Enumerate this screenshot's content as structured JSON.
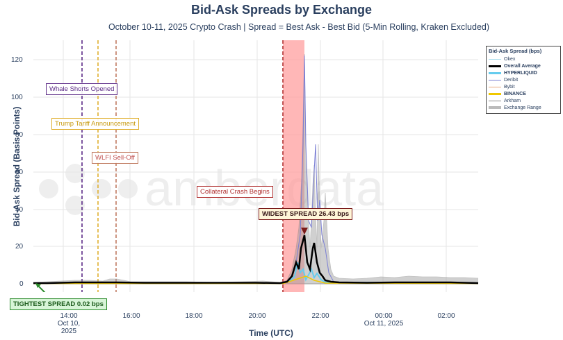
{
  "header": {
    "title": "Bid-Ask Spreads by Exchange",
    "subtitle": "October 10-11, 2025 Crypto Crash | Spread = Best Ask - Best Bid (5-Min Rolling, Kraken Excluded)"
  },
  "watermark": "amberdata",
  "legend": {
    "title": "Bid-Ask Spread (bps)",
    "items": [
      {
        "label": "Okex",
        "color": "#aaddee",
        "width": 1,
        "bold": false
      },
      {
        "label": "Overall Average",
        "color": "#000000",
        "width": 3,
        "bold": true
      },
      {
        "label": "HYPERLIQUID",
        "color": "#66ccee",
        "width": 3,
        "bold": true
      },
      {
        "label": "Deribit",
        "color": "#7b7fd4",
        "width": 1,
        "bold": false
      },
      {
        "label": "Bybit",
        "color": "#e8a87c",
        "width": 1,
        "bold": false
      },
      {
        "label": "BINANCE",
        "color": "#f0c800",
        "width": 3,
        "bold": true
      },
      {
        "label": "Arkham",
        "color": "#888888",
        "width": 1,
        "bold": false
      },
      {
        "label": "Exchange Range",
        "color": "#bbbbbb",
        "width": 4,
        "bold": false
      }
    ]
  },
  "annotations": {
    "whale": "Whale Shorts Opened",
    "trump": "Trump Tariff Announcement",
    "wlfi": "WLFI Sell-Off",
    "collateral": "Collateral Crash Begins",
    "widest": "WIDEST SPREAD 26.43 bps",
    "tightest": "TIGHTEST SPREAD 0.02 bps"
  },
  "axes": {
    "xlabel": "Time (UTC)",
    "ylabel": "Bid-Ask Spread (Basis Points)"
  },
  "chart_data": {
    "type": "line",
    "title": "Bid-Ask Spreads by Exchange",
    "subtitle": "October 10-11, 2025 Crypto Crash | Spread = Best Ask - Best Bid (5-Min Rolling, Kraken Excluded)",
    "xlabel": "Time (UTC)",
    "ylabel": "Bid-Ask Spread (Basis Points)",
    "ylim": [
      -3,
      128
    ],
    "yticks": [
      0,
      20,
      40,
      60,
      80,
      100,
      120
    ],
    "xticks": [
      "14:00\nOct 10, 2025",
      "16:00",
      "18:00",
      "20:00",
      "22:00",
      "00:00\nOct 11, 2025",
      "02:00"
    ],
    "grid": true,
    "legend_position": "right",
    "x_hours": [
      13.0,
      14.0,
      15.0,
      16.0,
      17.0,
      18.0,
      19.0,
      20.0,
      20.8,
      21.0,
      21.2,
      21.4,
      21.5,
      21.6,
      21.7,
      21.8,
      21.9,
      22.0,
      22.2,
      22.4,
      23.0,
      24.0,
      25.0,
      26.0,
      27.0
    ],
    "series": [
      {
        "name": "Overall Average",
        "values": [
          0.5,
          0.5,
          0.6,
          0.5,
          0.4,
          0.4,
          0.4,
          0.5,
          0.6,
          3,
          12,
          8,
          26.43,
          10,
          22,
          6,
          12,
          3,
          1.5,
          0.8,
          0.5,
          0.5,
          0.5,
          0.5,
          0.5
        ]
      },
      {
        "name": "Deribit",
        "values": [
          0.5,
          0.5,
          0.6,
          0.5,
          0.4,
          0.4,
          0.4,
          0.5,
          0.6,
          5,
          20,
          40,
          123,
          60,
          75,
          40,
          55,
          20,
          5,
          1,
          0.5,
          0.5,
          0.5,
          0.5,
          0.5
        ]
      },
      {
        "name": "HYPERLIQUID",
        "values": [
          0.3,
          0.3,
          0.3,
          0.3,
          0.3,
          0.3,
          0.3,
          0.3,
          0.5,
          2,
          6,
          4,
          8,
          5,
          7,
          3,
          4,
          2,
          1,
          0.5,
          0.3,
          0.3,
          0.3,
          0.3,
          0.3
        ]
      },
      {
        "name": "Exchange Range (max)",
        "values": [
          1.5,
          2,
          3,
          1.5,
          1,
          1,
          1,
          1.5,
          2,
          8,
          35,
          50,
          123,
          70,
          75,
          45,
          55,
          25,
          8,
          4,
          3,
          2.5,
          3,
          2.5,
          2
        ]
      }
    ],
    "events": [
      {
        "label": "Whale Shorts Opened",
        "x_hour": 14.45,
        "color": "#5b2a86"
      },
      {
        "label": "Trump Tariff Announcement",
        "x_hour": 14.95,
        "color": "#e0b030"
      },
      {
        "label": "WLFI Sell-Off",
        "x_hour": 15.55,
        "color": "#c06050"
      },
      {
        "label": "Collateral Crash Begins",
        "x_hour": 20.85,
        "color": "#b03030",
        "shaded_to": 21.5
      }
    ],
    "extremes": {
      "widest_bps": 26.43,
      "tightest_bps": 0.02
    }
  }
}
